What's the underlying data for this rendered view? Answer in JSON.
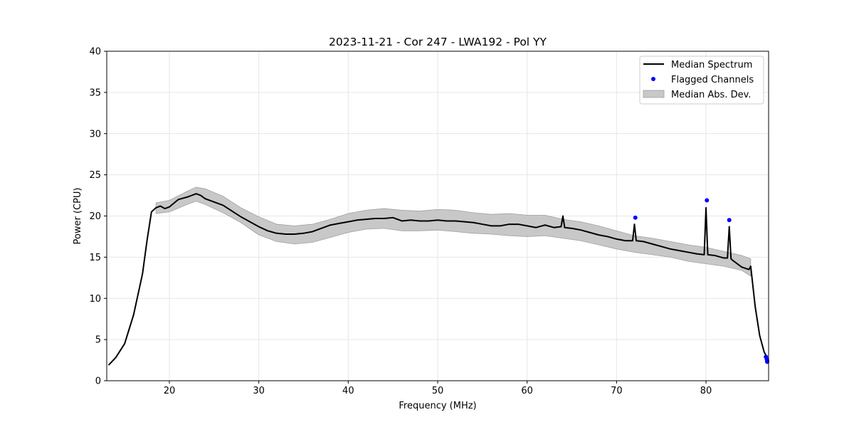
{
  "chart_data": {
    "type": "line",
    "title": "2023-11-21 - Cor 247 - LWA192 - Pol YY",
    "xlabel": "Frequency (MHz)",
    "ylabel": "Power (CPU)",
    "xlim": [
      13,
      87
    ],
    "ylim": [
      0,
      40
    ],
    "xticks": [
      20,
      30,
      40,
      50,
      60,
      70,
      80
    ],
    "yticks": [
      0,
      5,
      10,
      15,
      20,
      25,
      30,
      35,
      40
    ],
    "grid": true,
    "legend_position": "top-right",
    "legend": [
      "Median Spectrum",
      "Flagged Channels",
      "Median Abs. Dev."
    ],
    "colors": {
      "median": "#000000",
      "flagged": "#0000ff",
      "band": "#c8c8c8",
      "band_edge": "#a0a0a0",
      "grid": "#e6e6e6"
    },
    "series": [
      {
        "name": "Median Spectrum",
        "x": [
          13.2,
          14,
          15,
          16,
          17,
          17.5,
          18,
          18.5,
          19,
          19.5,
          20,
          21,
          22,
          23,
          23.5,
          24,
          25,
          26,
          27,
          28,
          29,
          30,
          31,
          32,
          33,
          34,
          35,
          36,
          37,
          38,
          39,
          40,
          41,
          42,
          43,
          44,
          45,
          46,
          47,
          48,
          49,
          50,
          51,
          52,
          53,
          54,
          55,
          56,
          57,
          58,
          59,
          60,
          61,
          62,
          63,
          63.8,
          64,
          64.2,
          65,
          66,
          67,
          68,
          69,
          70,
          71,
          71.8,
          72,
          72.2,
          73,
          74,
          75,
          76,
          77,
          78,
          79,
          79.8,
          80,
          80.2,
          81,
          82,
          82.4,
          82.6,
          82.8,
          83,
          84,
          84.8,
          85,
          85.5,
          86,
          86.5,
          87
        ],
        "y": [
          1.9,
          2.8,
          4.5,
          8,
          13,
          17,
          20.5,
          21,
          21.2,
          20.9,
          21.1,
          22,
          22.3,
          22.7,
          22.5,
          22.1,
          21.7,
          21.3,
          20.6,
          19.9,
          19.3,
          18.7,
          18.2,
          17.9,
          17.8,
          17.8,
          17.9,
          18.1,
          18.5,
          18.9,
          19.1,
          19.3,
          19.5,
          19.6,
          19.7,
          19.7,
          19.8,
          19.4,
          19.5,
          19.4,
          19.4,
          19.5,
          19.4,
          19.4,
          19.3,
          19.2,
          19,
          18.8,
          18.8,
          19,
          19,
          18.8,
          18.6,
          18.9,
          18.6,
          18.7,
          20,
          18.6,
          18.5,
          18.3,
          18,
          17.7,
          17.5,
          17.2,
          17,
          17,
          19,
          17,
          16.9,
          16.6,
          16.3,
          16,
          15.8,
          15.6,
          15.4,
          15.3,
          21,
          15.3,
          15.2,
          14.9,
          14.9,
          18.7,
          14.8,
          14.6,
          13.8,
          13.5,
          13.9,
          9,
          5.5,
          3.5,
          2.5
        ]
      },
      {
        "name": "Median Abs. Dev.",
        "x": [
          18.5,
          20,
          22,
          23,
          24,
          26,
          28,
          30,
          32,
          34,
          36,
          38,
          40,
          42,
          44,
          46,
          48,
          50,
          52,
          54,
          56,
          58,
          60,
          62,
          64,
          66,
          68,
          70,
          72,
          74,
          76,
          78,
          80,
          82,
          84,
          85
        ],
        "upper": [
          21.6,
          21.9,
          23,
          23.5,
          23.3,
          22.4,
          21,
          19.9,
          19,
          18.8,
          19,
          19.6,
          20.3,
          20.7,
          20.9,
          20.7,
          20.6,
          20.8,
          20.7,
          20.4,
          20.2,
          20.3,
          20.1,
          20.1,
          19.6,
          19.3,
          18.8,
          18.2,
          17.6,
          17.3,
          16.9,
          16.5,
          16.2,
          15.7,
          15.2,
          14.8
        ],
        "lower": [
          20.3,
          20.5,
          21.4,
          21.8,
          21.4,
          20.4,
          19.2,
          17.7,
          16.9,
          16.6,
          16.8,
          17.4,
          18,
          18.4,
          18.5,
          18.2,
          18.2,
          18.3,
          18.1,
          17.9,
          17.8,
          17.6,
          17.5,
          17.6,
          17.3,
          17,
          16.5,
          16,
          15.6,
          15.3,
          15,
          14.5,
          14.2,
          13.9,
          13.4,
          12.7
        ]
      },
      {
        "name": "Flagged Channels",
        "x": [
          72.1,
          80.1,
          82.6,
          86.7,
          86.8,
          86.9,
          87
        ],
        "y": [
          19.8,
          21.9,
          19.5,
          2.9,
          2.6,
          2.4,
          2.3
        ]
      }
    ]
  }
}
